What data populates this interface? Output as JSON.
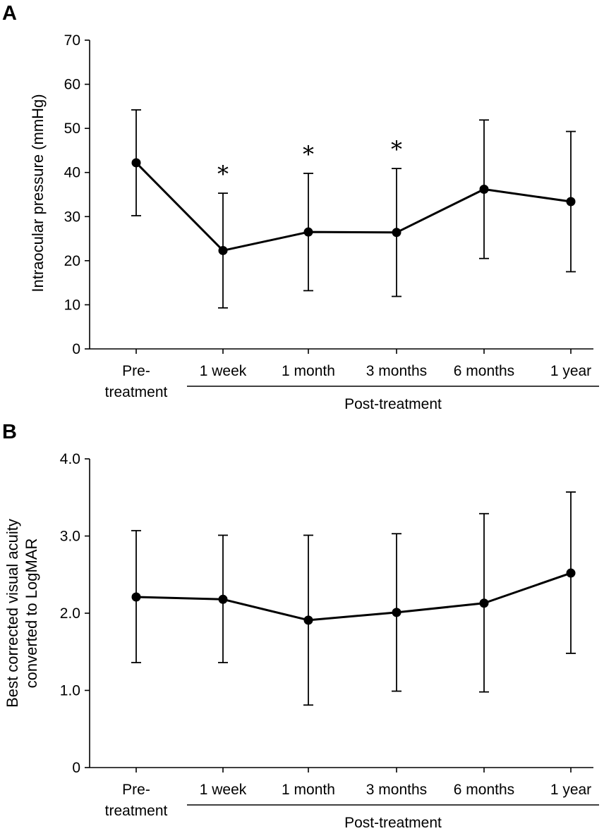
{
  "chart_data": [
    {
      "panel": "A",
      "type": "line",
      "title": "",
      "ylabel": "Intraocular pressure (mmHg)",
      "xlabel": "",
      "ylim": [
        0,
        70
      ],
      "yticks": [
        0,
        10,
        20,
        30,
        40,
        50,
        60,
        70
      ],
      "ytick_labels": [
        "0",
        "10",
        "20",
        "30",
        "40",
        "50",
        "60",
        "70"
      ],
      "categories": [
        "Pre-treatment",
        "1 week",
        "1 month",
        "3 months",
        "6 months",
        "1 year"
      ],
      "category_lines": [
        [
          "Pre-",
          "treatment"
        ],
        [
          "1 week"
        ],
        [
          "1 month"
        ],
        [
          "3 months"
        ],
        [
          "6 months"
        ],
        [
          "1 year"
        ]
      ],
      "group_label": "Post-treatment",
      "series": [
        {
          "name": "Intraocular pressure",
          "values": [
            42.2,
            22.3,
            26.5,
            26.4,
            36.2,
            33.4
          ],
          "err_high": [
            54.2,
            35.3,
            39.8,
            40.9,
            51.9,
            49.3
          ],
          "err_low": [
            30.2,
            9.3,
            13.2,
            11.9,
            20.5,
            17.5
          ]
        }
      ],
      "significance": [
        null,
        "*",
        "*",
        "*",
        null,
        null
      ]
    },
    {
      "panel": "B",
      "type": "line",
      "title": "",
      "ylabel_lines": [
        "Best corrected visual acuity",
        "converted to LogMAR"
      ],
      "xlabel": "",
      "ylim": [
        0,
        4
      ],
      "yticks": [
        0,
        1,
        2,
        3,
        4
      ],
      "ytick_labels": [
        "0",
        "1.0",
        "2.0",
        "3.0",
        "4.0"
      ],
      "categories": [
        "Pre-treatment",
        "1 week",
        "1 month",
        "3 months",
        "6 months",
        "1 year"
      ],
      "category_lines": [
        [
          "Pre-",
          "treatment"
        ],
        [
          "1 week"
        ],
        [
          "1 month"
        ],
        [
          "3 months"
        ],
        [
          "6 months"
        ],
        [
          "1 year"
        ]
      ],
      "group_label": "Post-treatment",
      "series": [
        {
          "name": "LogMAR",
          "values": [
            2.21,
            2.18,
            1.91,
            2.01,
            2.13,
            2.52
          ],
          "err_high": [
            3.07,
            3.01,
            3.01,
            3.03,
            3.29,
            3.57
          ],
          "err_low": [
            1.36,
            1.36,
            0.81,
            0.99,
            0.98,
            1.48
          ]
        }
      ],
      "significance": [
        null,
        null,
        null,
        null,
        null,
        null
      ]
    }
  ],
  "colors": {
    "ink": "#000000",
    "background": "#ffffff"
  }
}
